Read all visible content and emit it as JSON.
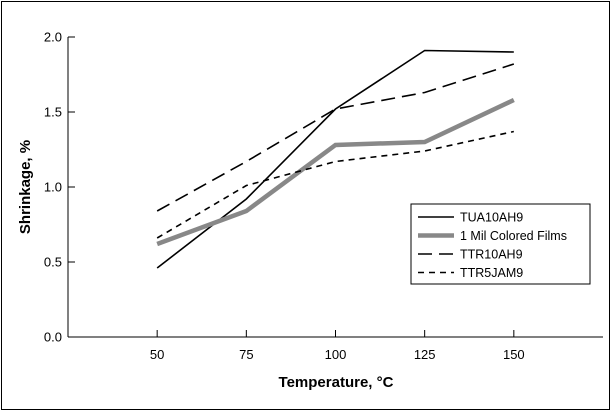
{
  "chart_data": {
    "type": "line",
    "title": "",
    "xlabel": "Temperature, °C",
    "ylabel": "Shrinkage, %",
    "x": [
      50,
      75,
      100,
      125,
      150
    ],
    "x_tick_labels": [
      "50",
      "75",
      "100",
      "125",
      "150"
    ],
    "y_ticks": [
      0.0,
      0.5,
      1.0,
      1.5,
      2.0
    ],
    "y_tick_labels": [
      "0.0",
      "0.5",
      "1.0",
      "1.5",
      "2.0"
    ],
    "ylim": [
      0,
      2.0
    ],
    "xlim": [
      25,
      175
    ],
    "grid": false,
    "legend_position": "right",
    "series": [
      {
        "name": "TUA10AH9",
        "values": [
          0.46,
          0.92,
          1.52,
          1.91,
          1.9
        ],
        "color": "#000000",
        "style": "solid",
        "width": "thin"
      },
      {
        "name": "1 Mil Colored Films",
        "values": [
          0.62,
          0.84,
          1.28,
          1.3,
          1.58
        ],
        "color": "#888888",
        "style": "solid",
        "width": "thick"
      },
      {
        "name": "TTR10AH9",
        "values": [
          0.84,
          1.17,
          1.52,
          1.63,
          1.82
        ],
        "color": "#000000",
        "style": "long-dash",
        "width": "thin"
      },
      {
        "name": "TTR5JAM9",
        "values": [
          0.66,
          1.01,
          1.17,
          1.24,
          1.37
        ],
        "color": "#000000",
        "style": "short-dash",
        "width": "thin"
      }
    ]
  }
}
